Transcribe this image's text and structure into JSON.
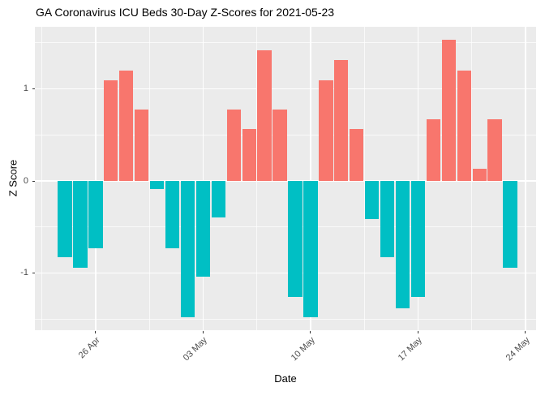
{
  "header": {
    "title": "GA Coronavirus ICU Beds 30-Day Z-Scores for 2021-05-23"
  },
  "chart_data": {
    "type": "bar",
    "title": "GA Coronavirus ICU Beds 30-Day Z-Scores for 2021-05-23",
    "xlabel": "Date",
    "ylabel": "Z Score",
    "categories": [
      "24 Apr",
      "25 Apr",
      "26 Apr",
      "27 Apr",
      "28 Apr",
      "29 Apr",
      "30 Apr",
      "01 May",
      "02 May",
      "03 May",
      "04 May",
      "05 May",
      "06 May",
      "07 May",
      "08 May",
      "09 May",
      "10 May",
      "11 May",
      "12 May",
      "13 May",
      "14 May",
      "15 May",
      "16 May",
      "17 May",
      "18 May",
      "19 May",
      "20 May",
      "21 May",
      "22 May",
      "23 May"
    ],
    "values": [
      -0.83,
      -0.94,
      -0.73,
      1.09,
      1.2,
      0.77,
      -0.09,
      -0.73,
      -1.48,
      -1.04,
      -0.4,
      0.77,
      0.56,
      1.42,
      0.77,
      -1.26,
      -1.48,
      1.09,
      1.31,
      0.56,
      -0.41,
      -0.83,
      -1.38,
      -1.26,
      0.67,
      1.53,
      1.2,
      0.13,
      0.67,
      -0.94
    ],
    "positive_color": "#F8766D",
    "negative_color": "#00BFC4",
    "panel_background": "#EBEBEB",
    "gridline_color": "#FFFFFF",
    "axis_text_color": "#4D4D4D",
    "ylim": [
      -1.62,
      1.67
    ],
    "yticks": [
      {
        "label": "1",
        "value": 1
      },
      {
        "label": "0",
        "value": 0
      },
      {
        "label": "-1",
        "value": -1
      }
    ],
    "yticks_minor": [
      1.5,
      0.5,
      -0.5,
      -1.5
    ],
    "xticks": [
      {
        "label": "26 Apr",
        "day_index": 2
      },
      {
        "label": "03 May",
        "day_index": 9
      },
      {
        "label": "10 May",
        "day_index": 16
      },
      {
        "label": "17 May",
        "day_index": 23
      },
      {
        "label": "24 May",
        "day_index": 30
      }
    ],
    "xticks_minor_day_index": [
      -1.5,
      5.5,
      12.5,
      19.5,
      26.5
    ],
    "grid": "on",
    "legend": "none"
  }
}
